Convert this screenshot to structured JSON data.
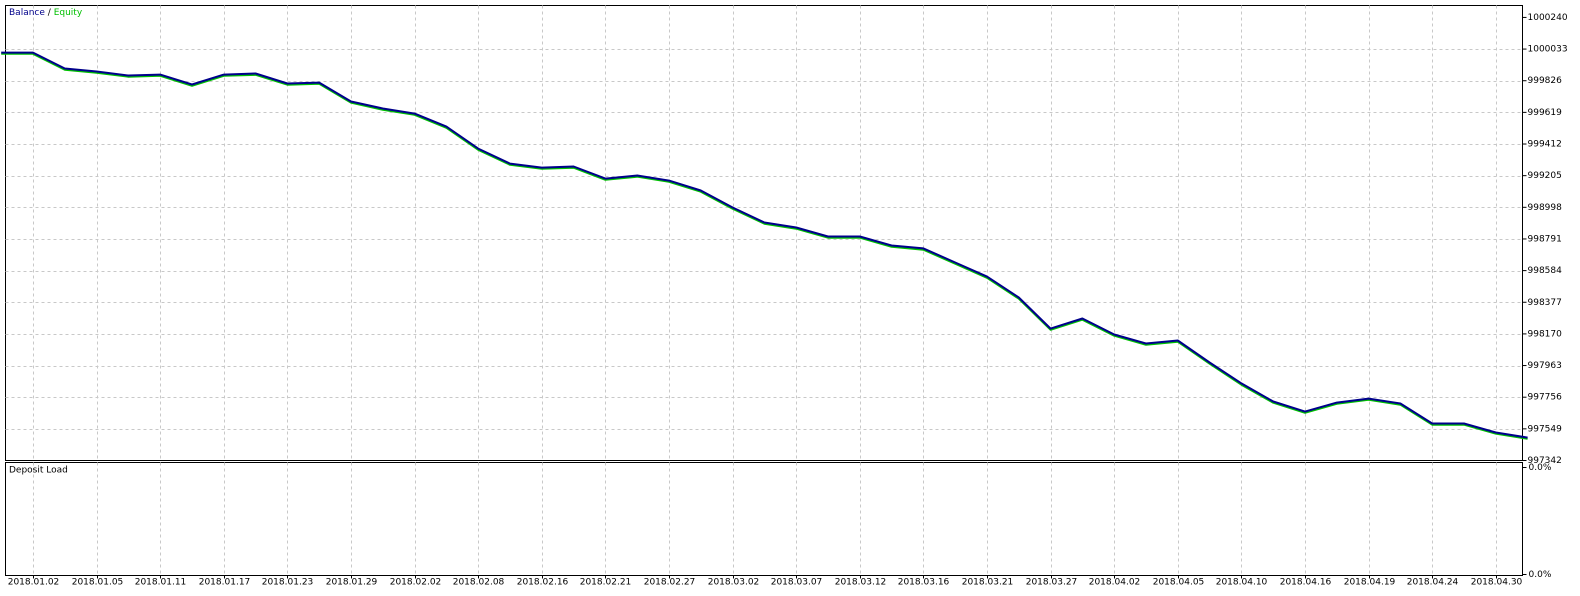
{
  "chart_data": [
    {
      "type": "line",
      "legend_separator": "/",
      "categories": [
        null,
        "2018.01.02",
        null,
        "2018.01.05",
        null,
        "2018.01.11",
        null,
        "2018.01.17",
        null,
        "2018.01.23",
        null,
        "2018.01.29",
        null,
        "2018.02.02",
        null,
        "2018.02.08",
        null,
        "2018.02.16",
        null,
        "2018.02.21",
        null,
        "2018.02.27",
        null,
        "2018.03.02",
        null,
        "2018.03.07",
        null,
        "2018.03.12",
        null,
        "2018.03.16",
        null,
        "2018.03.21",
        null,
        "2018.03.27",
        null,
        "2018.04.02",
        null,
        "2018.04.05",
        null,
        "2018.04.10",
        null,
        "2018.04.16",
        null,
        "2018.04.19",
        null,
        "2018.04.24",
        null,
        "2018.04.30",
        null
      ],
      "series": [
        {
          "name": "Equity",
          "color": "#00c000",
          "values": [
            1000002,
            1000002,
            999898,
            999878,
            999852,
            999858,
            999793,
            999858,
            999865,
            999800,
            999806,
            999682,
            999636,
            999603,
            999518,
            999374,
            999276,
            999250,
            999257,
            999178,
            999198,
            999165,
            999100,
            998989,
            998891,
            998858,
            998799,
            998799,
            998740,
            998721,
            998629,
            998537,
            998400,
            998197,
            998263,
            998158,
            998099,
            998119,
            997975,
            997838,
            997720,
            997654,
            997713,
            997739,
            997707,
            997576,
            997576,
            997517,
            997484
          ]
        },
        {
          "name": "Balance",
          "color": "#00008b",
          "values": [
            1000010,
            1000010,
            999906,
            999886,
            999860,
            999866,
            999801,
            999866,
            999873,
            999808,
            999814,
            999690,
            999644,
            999611,
            999526,
            999382,
            999284,
            999258,
            999265,
            999186,
            999206,
            999173,
            999108,
            998997,
            998899,
            998866,
            998807,
            998807,
            998748,
            998729,
            998637,
            998545,
            998408,
            998205,
            998271,
            998166,
            998107,
            998127,
            997983,
            997846,
            997728,
            997662,
            997721,
            997747,
            997715,
            997584,
            997584,
            997525,
            997492
          ]
        }
      ],
      "ylim": [
        997342,
        1000318
      ],
      "yticks": [
        1000240,
        1000033,
        999826,
        999619,
        999412,
        999205,
        998998,
        998791,
        998584,
        998377,
        998170,
        997963,
        997756,
        997549,
        997342
      ],
      "grid": true
    },
    {
      "type": "load",
      "title": "Deposit Load",
      "yticks": [
        {
          "value": 0,
          "label": "0.0%"
        },
        {
          "value": 0,
          "label": "0.0%"
        }
      ],
      "grid": true
    }
  ]
}
